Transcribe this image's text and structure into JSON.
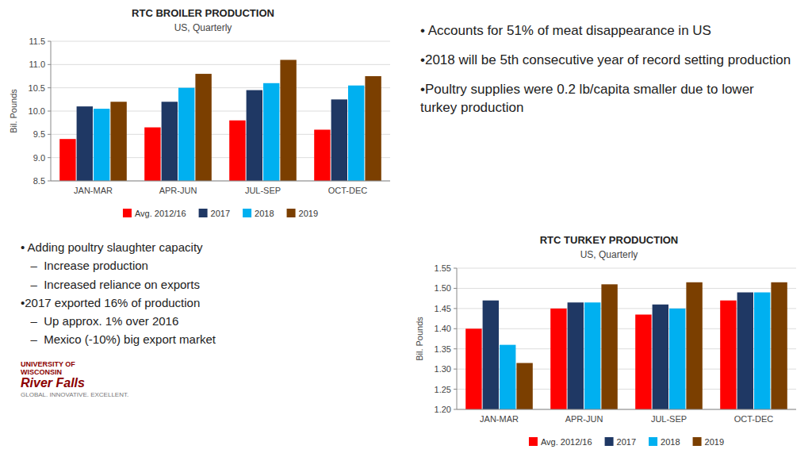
{
  "chart_data": [
    {
      "type": "bar",
      "title": "RTC BROILER PRODUCTION",
      "subtitle": "US, Quarterly",
      "y_label": "Bil. Pounds",
      "categories": [
        "JAN-MAR",
        "APR-JUN",
        "JUL-SEP",
        "OCT-DEC"
      ],
      "series": [
        {
          "name": "Avg. 2012/16",
          "color": "#FF0000",
          "values": [
            9.4,
            9.65,
            9.8,
            9.6
          ]
        },
        {
          "name": "2017",
          "color": "#1F3864",
          "values": [
            10.1,
            10.2,
            10.45,
            10.25
          ]
        },
        {
          "name": "2018",
          "color": "#00B0F0",
          "values": [
            10.05,
            10.5,
            10.6,
            10.55
          ]
        },
        {
          "name": "2019",
          "color": "#7B3F00",
          "values": [
            10.2,
            10.8,
            11.1,
            10.75
          ]
        }
      ],
      "ylim": [
        8.5,
        11.5
      ],
      "yticks": [
        8.5,
        {
          "value": 9.0,
          "label": "9.0"
        },
        9.5,
        {
          "value": 10.0,
          "label": "10.0"
        },
        10.5,
        {
          "value": 11.0,
          "label": "11.0"
        },
        11.5
      ],
      "grid": true,
      "legend": "bottom",
      "annotations": [
        "• Accounts for 51% of meat disappearance in US",
        "•2018 will be 5th consecutive year of record setting production",
        "•Poultry supplies were 0.2 lb/capita smaller due to lower turkey production"
      ]
    },
    {
      "type": "bar",
      "title": "RTC TURKEY PRODUCTION",
      "subtitle": "US, Quarterly",
      "y_label": "Bil. Pounds",
      "categories": [
        "JAN-MAR",
        "APR-JUN",
        "JUL-SEP",
        "OCT-DEC"
      ],
      "series": [
        {
          "name": "Avg. 2012/16",
          "color": "#FF0000",
          "values": [
            1.4,
            1.45,
            1.435,
            1.47
          ]
        },
        {
          "name": "2017",
          "color": "#1F3864",
          "values": [
            1.47,
            1.465,
            1.46,
            1.49
          ]
        },
        {
          "name": "2018",
          "color": "#00B0F0",
          "values": [
            1.36,
            1.465,
            1.45,
            1.49
          ]
        },
        {
          "name": "2019",
          "color": "#7B3F00",
          "values": [
            1.315,
            1.51,
            1.515,
            1.515
          ]
        }
      ],
      "ylim": [
        1.2,
        1.55
      ],
      "yticks": [
        {
          "value": 1.2,
          "label": "1.20"
        },
        1.25,
        {
          "value": 1.3,
          "label": "1.30"
        },
        1.35,
        {
          "value": 1.4,
          "label": "1.40"
        },
        1.45,
        {
          "value": 1.5,
          "label": "1.50"
        },
        1.55
      ],
      "grid": true,
      "legend": "bottom",
      "annotations": [
        "• Adding poultry slaughter capacity",
        "   –  Increase production",
        "   –  Increased reliance on exports",
        "•2017 exported 16% of production",
        "   –  Up approx. 1% over 2016",
        "   –  Mexico (-10%) big export market",
        "UNIVERSITY OF\nWISCONSIN",
        "River Falls",
        "GLOBAL. INNOVATIVE. EXCELLENT."
      ]
    }
  ]
}
